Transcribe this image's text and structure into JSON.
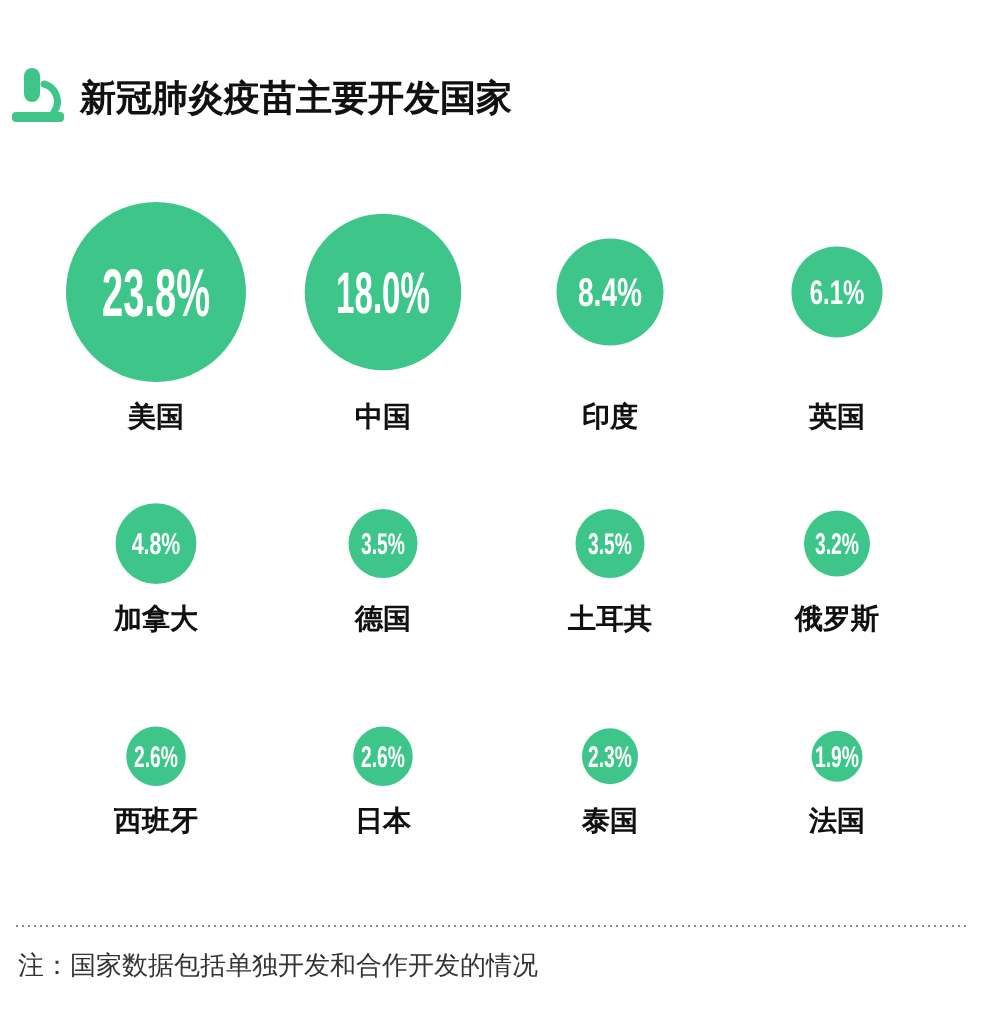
{
  "chart_data": {
    "type": "other",
    "title": "新冠肺炎疫苗主要开发国家",
    "categories": [
      "美国",
      "中国",
      "印度",
      "英国",
      "加拿大",
      "德国",
      "土耳其",
      "俄罗斯",
      "西班牙",
      "日本",
      "泰国",
      "法国"
    ],
    "values": [
      23.8,
      18.0,
      8.4,
      6.1,
      4.8,
      3.5,
      3.5,
      3.2,
      2.6,
      2.6,
      2.3,
      1.9
    ],
    "value_labels": [
      "23.8%",
      "18.0%",
      "8.4%",
      "6.1%",
      "4.8%",
      "3.5%",
      "3.5%",
      "3.2%",
      "2.6%",
      "2.6%",
      "2.3%",
      "1.9%"
    ],
    "color": "#3ec68a",
    "annotations": [
      "注：国家数据包括单独开发和合作开发的情况"
    ]
  }
}
